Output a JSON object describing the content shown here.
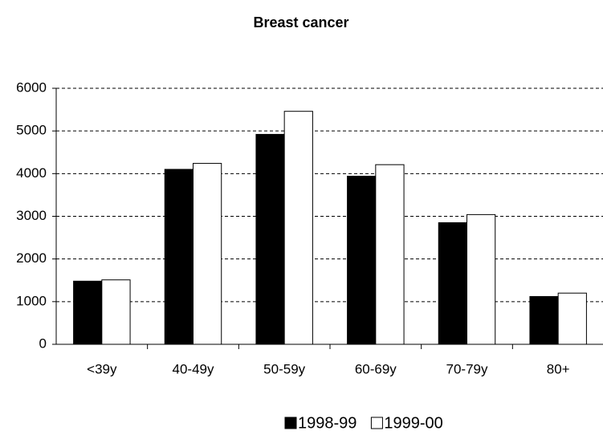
{
  "chart_data": {
    "type": "bar",
    "title": "Breast cancer",
    "categories": [
      "<39y",
      "40-49y",
      "50-59y",
      "60-69y",
      "70-79y",
      "80+"
    ],
    "series": [
      {
        "name": "1998-99",
        "color": "#000000",
        "values": [
          1480,
          4100,
          4920,
          3940,
          2850,
          1120
        ]
      },
      {
        "name": "1999-00",
        "color": "#ffffff",
        "values": [
          1510,
          4240,
          5460,
          4210,
          3040,
          1200
        ]
      }
    ],
    "ylim": [
      0,
      6000
    ],
    "yticks": [
      0,
      1000,
      2000,
      3000,
      4000,
      5000,
      6000
    ],
    "grid": true
  }
}
